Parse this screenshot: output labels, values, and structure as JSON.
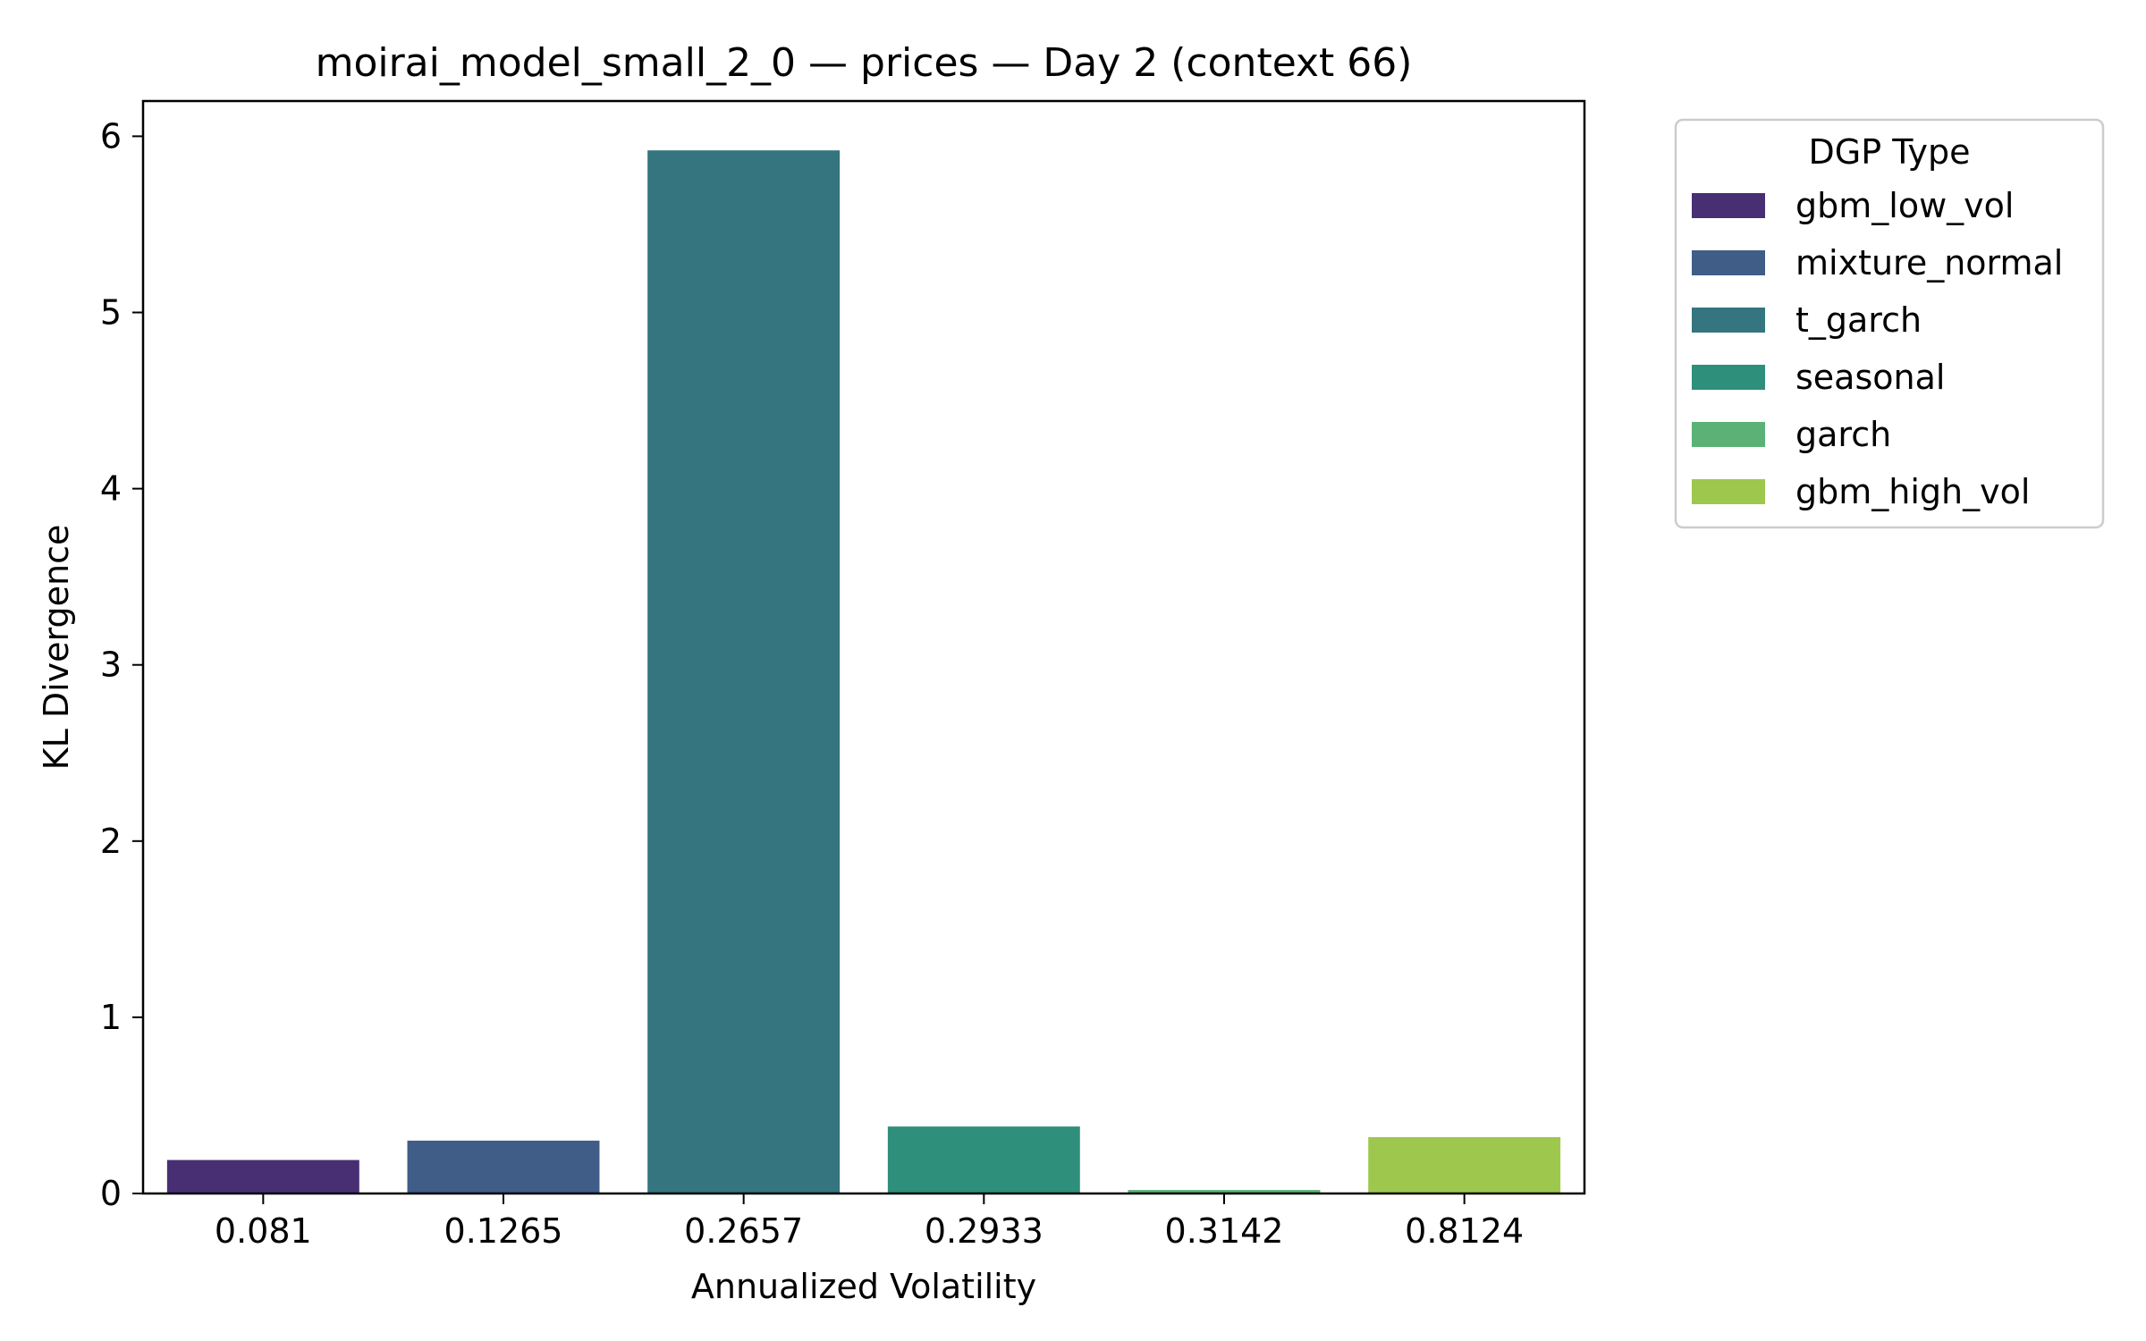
{
  "chart_data": {
    "type": "bar",
    "title": "moirai_model_small_2_0 — prices — Day 2 (context 66)",
    "xlabel": "Annualized Volatility",
    "ylabel": "KL Divergence",
    "categories": [
      "0.081",
      "0.1265",
      "0.2657",
      "0.2933",
      "0.3142",
      "0.8124"
    ],
    "values": [
      0.19,
      0.3,
      5.92,
      0.38,
      0.02,
      0.32
    ],
    "ylim": [
      0,
      6.2
    ],
    "yticks": [
      0,
      1,
      2,
      3,
      4,
      5,
      6
    ],
    "grid": false,
    "colors": [
      "#482f73",
      "#3f5d87",
      "#347580",
      "#2e8f7b",
      "#5ab276",
      "#9ec74e"
    ],
    "legend": {
      "title": "DGP Type",
      "position": "outside-top-right",
      "entries": [
        "gbm_low_vol",
        "mixture_normal",
        "t_garch",
        "seasonal",
        "garch",
        "gbm_high_vol"
      ]
    }
  }
}
